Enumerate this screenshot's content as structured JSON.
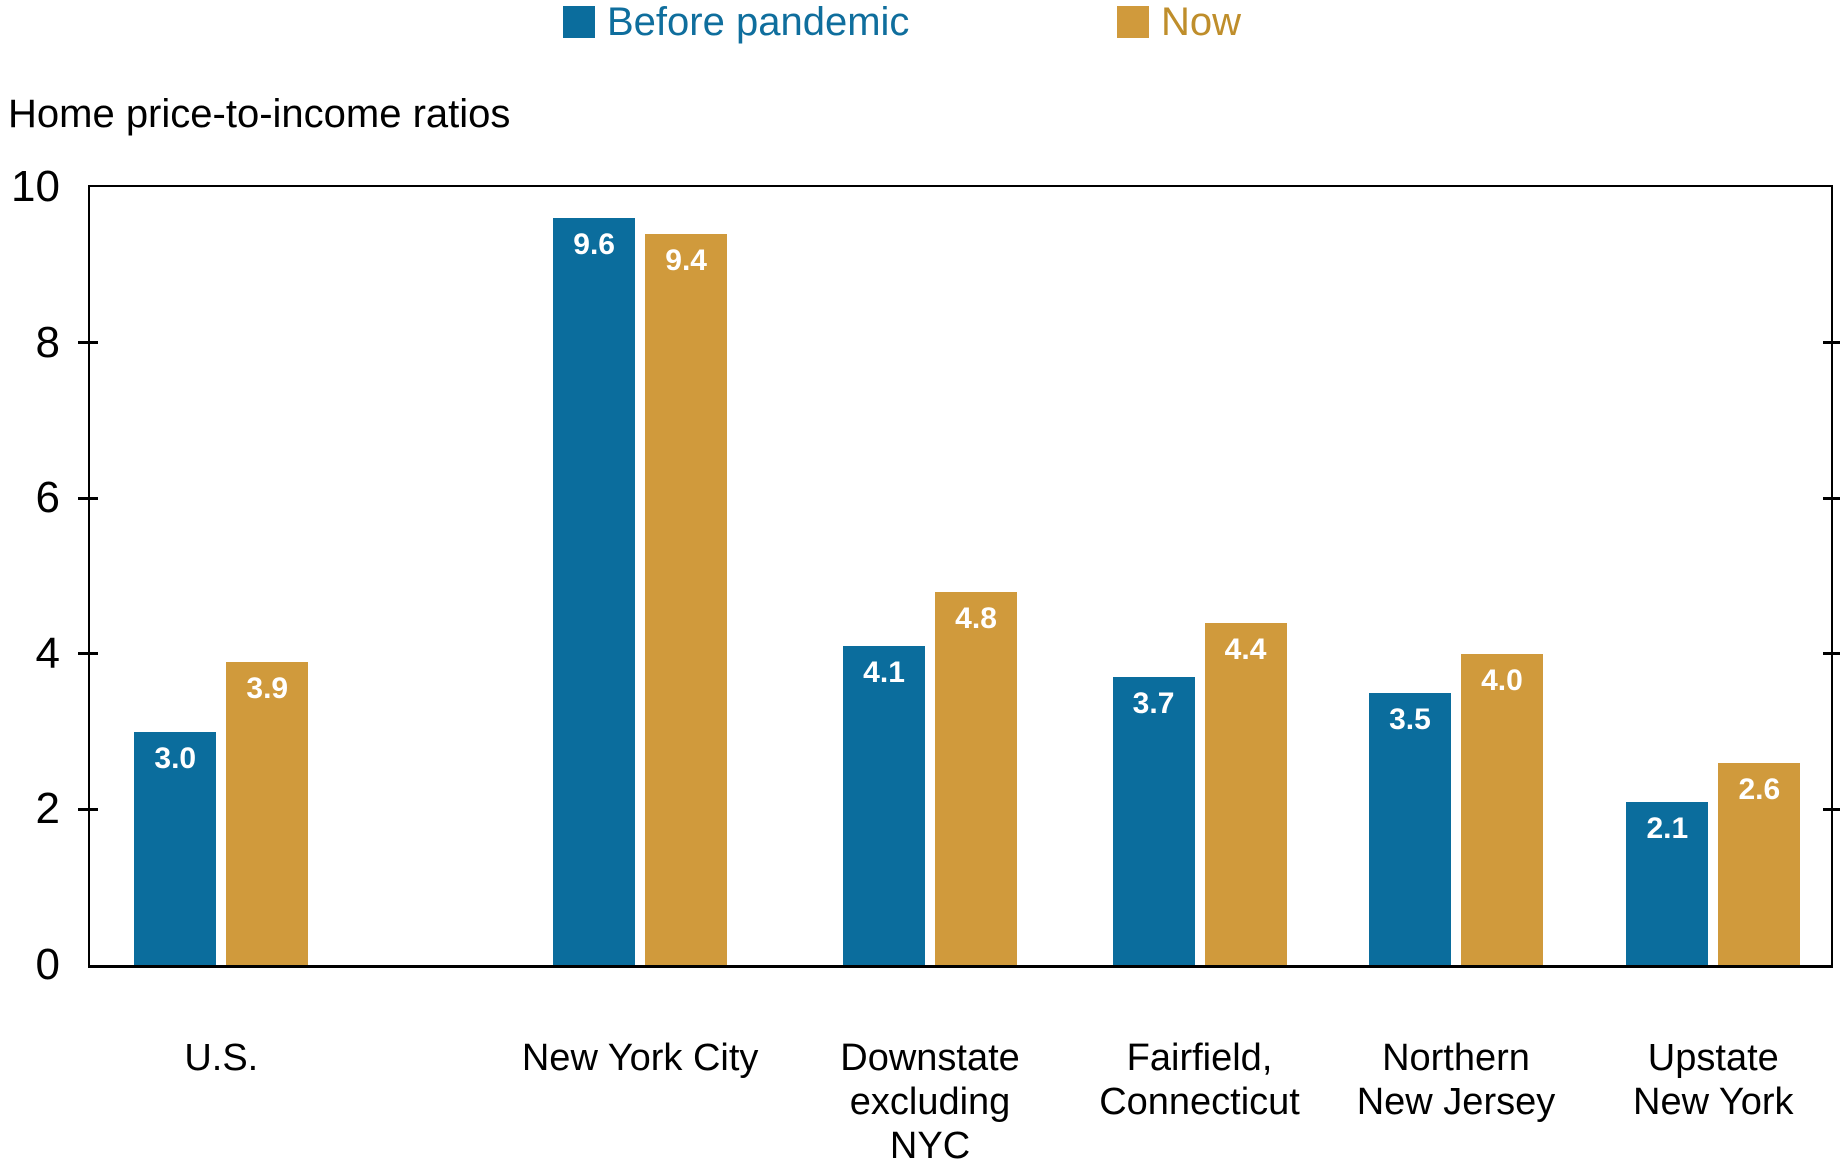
{
  "legend": {
    "items": [
      {
        "label": "Before pandemic",
        "swatch_color": "#0b6d9d",
        "text_color": "#0f6e9d"
      },
      {
        "label": "Now",
        "swatch_color": "#d09a3c",
        "text_color": "#bf8e2b"
      }
    ]
  },
  "chart_data": {
    "type": "bar",
    "title": "Home price-to-income ratios",
    "categories": [
      "U.S.",
      "New York City",
      "Downstate excluding NYC",
      "Fairfield, Connecticut",
      "Northern New Jersey",
      "Upstate New York"
    ],
    "category_lines": [
      [
        "U.S."
      ],
      [
        "New York City"
      ],
      [
        "Downstate",
        "excluding",
        "NYC"
      ],
      [
        "Fairfield,",
        "Connecticut"
      ],
      [
        "Northern",
        "New Jersey"
      ],
      [
        "Upstate",
        "New York"
      ]
    ],
    "series": [
      {
        "name": "Before pandemic",
        "color": "#0b6d9d",
        "values": [
          3.0,
          9.6,
          4.1,
          3.7,
          3.5,
          2.1
        ],
        "labels": [
          "3.0",
          "9.6",
          "4.1",
          "3.7",
          "3.5",
          "2.1"
        ]
      },
      {
        "name": "Now",
        "color": "#d09a3c",
        "values": [
          3.9,
          9.4,
          4.8,
          4.4,
          4.0,
          2.6
        ],
        "labels": [
          "3.9",
          "9.4",
          "4.8",
          "4.4",
          "4.0",
          "2.6"
        ]
      }
    ],
    "xlabel": "",
    "ylabel": "",
    "ylim": [
      0,
      10
    ],
    "yticks": [
      "0",
      "2",
      "4",
      "6",
      "8",
      "10"
    ],
    "ytick_values": [
      0,
      2,
      4,
      6,
      8,
      10
    ],
    "grid": false,
    "legend_position": "top",
    "value_label_color": "#ffffff",
    "axis_color": "#000000"
  }
}
